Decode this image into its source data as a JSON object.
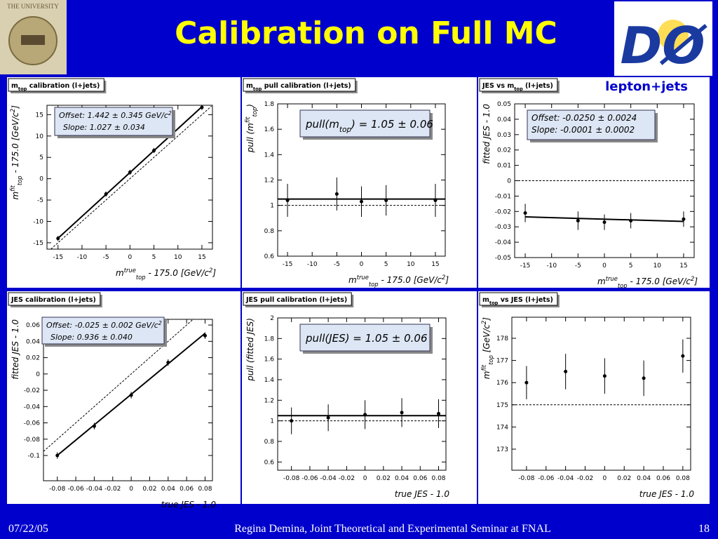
{
  "header": {
    "title": "Calibration on Full MC",
    "logo_text": "THE UNIVERSITY",
    "experiment_logo": "DØ",
    "label": "lepton+jets"
  },
  "footer": {
    "date": "07/22/05",
    "text": "Regina Demina, Joint Theoretical and Experimental Seminar at FNAL",
    "page": "18"
  },
  "chart_data": [
    {
      "type": "scatter",
      "title": [
        {
          "text": "m"
        },
        {
          "text": "top",
          "pos": "sub"
        },
        " calibration (l+jets)"
      ],
      "xlabel": [
        {
          "text": "m"
        },
        {
          "text": "true",
          "pos": "sup"
        },
        {
          "text": "top",
          "pos": "sub"
        },
        " - 175.0 [GeV/c",
        {
          "text": "2",
          "pos": "sup"
        },
        "]"
      ],
      "ylabel": [
        {
          "text": "m"
        },
        {
          "text": "fit",
          "pos": "sup"
        },
        {
          "text": "top",
          "pos": "sub"
        },
        " - 175.0 [GeV/c",
        {
          "text": "2",
          "pos": "sup"
        },
        "]"
      ],
      "x": [
        -15,
        -5,
        0,
        5,
        15
      ],
      "values": [
        -14.0,
        -3.6,
        1.5,
        6.6,
        16.7
      ],
      "errors": [
        0.6,
        0.6,
        0.6,
        0.6,
        0.6
      ],
      "xlim": [
        -17.3,
        17.2
      ],
      "xticks": [
        -15,
        -10,
        -5,
        0,
        5,
        10,
        15
      ],
      "ylim": [
        -16.5,
        17.2
      ],
      "yticks": [
        -15,
        -10,
        -5,
        0,
        5,
        10,
        15
      ],
      "fit": {
        "x": [
          -15,
          15
        ],
        "y": [
          -13.96,
          16.85
        ]
      },
      "reference": {
        "x": [
          -16.5,
          17
        ],
        "y": [
          -16.5,
          17
        ]
      },
      "annotation": [
        [
          "Offset: 1.442 ± 0.345 GeV/c",
          {
            "text": "2",
            "pos": "sup"
          }
        ],
        [
          "Slope:  1.027 ± 0.034"
        ]
      ]
    },
    {
      "type": "scatter",
      "title": [
        {
          "text": "m"
        },
        {
          "text": "top",
          "pos": "sub"
        },
        " pull calibration (l+jets)"
      ],
      "xlabel": [
        {
          "text": "m"
        },
        {
          "text": "true",
          "pos": "sup"
        },
        {
          "text": "top",
          "pos": "sub"
        },
        " - 175.0 [GeV/c",
        {
          "text": "2",
          "pos": "sup"
        },
        "]"
      ],
      "ylabel": [
        "pull (m",
        {
          "text": "fit",
          "pos": "sup"
        },
        {
          "text": "top",
          "pos": "sub"
        },
        ")"
      ],
      "x": [
        -15,
        -5,
        0,
        5,
        15
      ],
      "values": [
        1.04,
        1.09,
        1.03,
        1.04,
        1.04
      ],
      "errors": [
        0.13,
        0.13,
        0.12,
        0.12,
        0.13
      ],
      "xlim": [
        -17,
        17
      ],
      "xticks": [
        -15,
        -10,
        -5,
        0,
        5,
        10,
        15
      ],
      "ylim": [
        0.6,
        1.8
      ],
      "yticks": [
        0.6,
        0.8,
        1,
        1.2,
        1.4,
        1.6,
        1.8
      ],
      "fit": {
        "x": [
          -17,
          17
        ],
        "y": [
          1.05,
          1.05
        ]
      },
      "reference": {
        "x": [
          -17,
          17
        ],
        "y": [
          1,
          1
        ]
      },
      "annotation": [
        [
          "pull(m",
          {
            "text": "top",
            "pos": "sub"
          },
          ") = 1.05 ± 0.06"
        ]
      ]
    },
    {
      "type": "scatter",
      "title": [
        {
          "text": "JES vs m"
        },
        {
          "text": "top",
          "pos": "sub"
        },
        " (l+jets)"
      ],
      "xlabel": [
        {
          "text": "m"
        },
        {
          "text": "true",
          "pos": "sup"
        },
        {
          "text": "top",
          "pos": "sub"
        },
        " - 175.0 [GeV/c",
        {
          "text": "2",
          "pos": "sup"
        },
        "]"
      ],
      "ylabel": [
        "fitted JES - 1.0"
      ],
      "x": [
        -15,
        -5,
        0,
        5,
        15
      ],
      "values": [
        -0.021,
        -0.026,
        -0.027,
        -0.026,
        -0.025
      ],
      "errors": [
        0.006,
        0.006,
        0.005,
        0.005,
        0.005
      ],
      "xlim": [
        -17,
        17
      ],
      "xticks": [
        -15,
        -10,
        -5,
        0,
        5,
        10,
        15
      ],
      "ylim": [
        -0.05,
        0.05
      ],
      "yticks": [
        -0.05,
        -0.04,
        -0.03,
        -0.02,
        -0.01,
        0,
        0.01,
        0.02,
        0.03,
        0.04,
        0.05
      ],
      "fit": {
        "x": [
          -15,
          15
        ],
        "y": [
          -0.0235,
          -0.0265
        ]
      },
      "reference": {
        "x": [
          -17,
          17
        ],
        "y": [
          0,
          0
        ]
      },
      "annotation": [
        [
          "Offset: -0.0250 ± 0.0024"
        ],
        [
          "Slope:  -0.0001 ± 0.0002"
        ]
      ]
    },
    {
      "type": "scatter",
      "title": [
        "JES calibration (l+jets)"
      ],
      "xlabel": [
        "true JES - 1.0"
      ],
      "ylabel": [
        "fitted JES - 1.0"
      ],
      "x": [
        -0.08,
        -0.04,
        0,
        0.04,
        0.08
      ],
      "values": [
        -0.1,
        -0.064,
        -0.026,
        0.014,
        0.047
      ],
      "errors": [
        0.004,
        0.004,
        0.004,
        0.004,
        0.004
      ],
      "xlim": [
        -0.095,
        0.088
      ],
      "xticks": [
        -0.08,
        -0.06,
        -0.04,
        -0.02,
        0,
        0.02,
        0.04,
        0.06,
        0.08
      ],
      "ylim": [
        -0.131,
        0.067
      ],
      "yticks": [
        -0.1,
        -0.08,
        -0.06,
        -0.04,
        -0.02,
        0,
        0.02,
        0.04,
        0.06
      ],
      "fit": {
        "x": [
          -0.08,
          0.08
        ],
        "y": [
          -0.0999,
          0.0499
        ]
      },
      "reference": {
        "x": [
          -0.095,
          0.067
        ],
        "y": [
          -0.095,
          0.067
        ]
      },
      "annotation": [
        [
          "Offset: -0.025 ± 0.002 GeV/c",
          {
            "text": "2",
            "pos": "sup"
          }
        ],
        [
          "Slope:  0.936 ± 0.040"
        ]
      ]
    },
    {
      "type": "scatter",
      "title": [
        "JES pull calibration (l+jets)"
      ],
      "xlabel": [
        "true JES - 1.0"
      ],
      "ylabel": [
        "pull (fitted JES)"
      ],
      "x": [
        -0.08,
        -0.04,
        0,
        0.04,
        0.08
      ],
      "values": [
        1.0,
        1.03,
        1.06,
        1.08,
        1.07
      ],
      "errors": [
        0.13,
        0.13,
        0.14,
        0.14,
        0.14
      ],
      "xlim": [
        -0.095,
        0.088
      ],
      "xticks": [
        -0.08,
        -0.06,
        -0.04,
        -0.02,
        0,
        0.02,
        0.04,
        0.06,
        0.08
      ],
      "ylim": [
        0.52,
        2
      ],
      "yticks": [
        0.6,
        0.8,
        1,
        1.2,
        1.4,
        1.6,
        1.8,
        2
      ],
      "fit": {
        "x": [
          -0.095,
          0.088
        ],
        "y": [
          1.05,
          1.05
        ]
      },
      "reference": {
        "x": [
          -0.095,
          0.088
        ],
        "y": [
          1,
          1
        ]
      },
      "annotation": [
        [
          "pull(JES) = 1.05 ± 0.06"
        ]
      ]
    },
    {
      "type": "scatter",
      "title": [
        {
          "text": "m"
        },
        {
          "text": "top",
          "pos": "sub"
        },
        " vs JES (l+jets)"
      ],
      "xlabel": [
        "true JES - 1.0"
      ],
      "ylabel": [
        {
          "text": "m"
        },
        {
          "text": "fit",
          "pos": "sup"
        },
        {
          "text": "top",
          "pos": "sub"
        },
        " [GeV/c",
        {
          "text": "2",
          "pos": "sup"
        },
        "]"
      ],
      "x": [
        -0.08,
        -0.04,
        0,
        0.04,
        0.08
      ],
      "values": [
        176.0,
        176.5,
        176.3,
        176.2,
        177.2
      ],
      "errors": [
        0.75,
        0.8,
        0.8,
        0.8,
        0.75
      ],
      "xlim": [
        -0.095,
        0.088
      ],
      "xticks": [
        -0.08,
        -0.06,
        -0.04,
        -0.02,
        0,
        0.02,
        0.04,
        0.06,
        0.08
      ],
      "ylim": [
        172.05,
        178.95
      ],
      "yticks": [
        173,
        174,
        175,
        176,
        177,
        178
      ],
      "reference": {
        "x": [
          -0.095,
          0.088
        ],
        "y": [
          175,
          175
        ]
      }
    }
  ]
}
